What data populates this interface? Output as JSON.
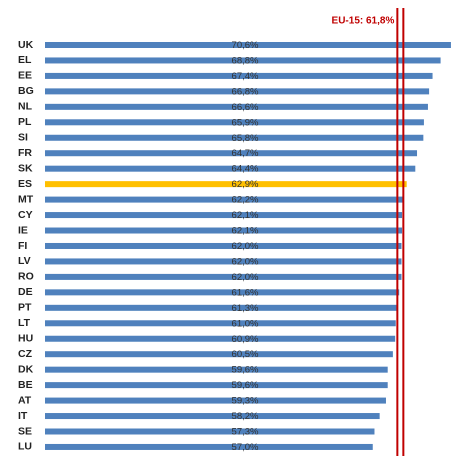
{
  "chart_data": {
    "type": "bar",
    "orientation": "horizontal",
    "categories": [
      "UK",
      "EL",
      "EE",
      "BG",
      "NL",
      "PL",
      "SI",
      "FR",
      "SK",
      "ES",
      "MT",
      "CY",
      "IE",
      "FI",
      "LV",
      "RO",
      "DE",
      "PT",
      "LT",
      "HU",
      "CZ",
      "DK",
      "BE",
      "AT",
      "IT",
      "SE",
      "LU"
    ],
    "values": [
      70.6,
      68.8,
      67.4,
      66.8,
      66.6,
      65.9,
      65.8,
      64.7,
      64.4,
      62.9,
      62.2,
      62.1,
      62.1,
      62.0,
      62.0,
      62.0,
      61.6,
      61.3,
      61.0,
      60.9,
      60.5,
      59.6,
      59.6,
      59.3,
      58.2,
      57.3,
      57.0
    ],
    "value_labels": [
      "70,6%",
      "68,8%",
      "67,4%",
      "66,8%",
      "66,6%",
      "65,9%",
      "65,8%",
      "64,7%",
      "64,4%",
      "62,9%",
      "62,2%",
      "62,1%",
      "62,1%",
      "62,0%",
      "62,0%",
      "62,0%",
      "61,6%",
      "61,3%",
      "61,0%",
      "60,9%",
      "60,5%",
      "59,6%",
      "59,6%",
      "59,3%",
      "58,2%",
      "57,3%",
      "57,0%"
    ],
    "colors": [
      "#4f81bd",
      "#4f81bd",
      "#4f81bd",
      "#4f81bd",
      "#4f81bd",
      "#4f81bd",
      "#4f81bd",
      "#4f81bd",
      "#4f81bd",
      "#ffc000",
      "#4f81bd",
      "#4f81bd",
      "#4f81bd",
      "#4f81bd",
      "#4f81bd",
      "#4f81bd",
      "#4f81bd",
      "#4f81bd",
      "#4f81bd",
      "#4f81bd",
      "#4f81bd",
      "#4f81bd",
      "#4f81bd",
      "#4f81bd",
      "#4f81bd",
      "#4f81bd",
      "#4f81bd"
    ],
    "reference_line": {
      "value": 61.8,
      "label": "EU-15: 61,8%",
      "color": "#c00000"
    }
  }
}
